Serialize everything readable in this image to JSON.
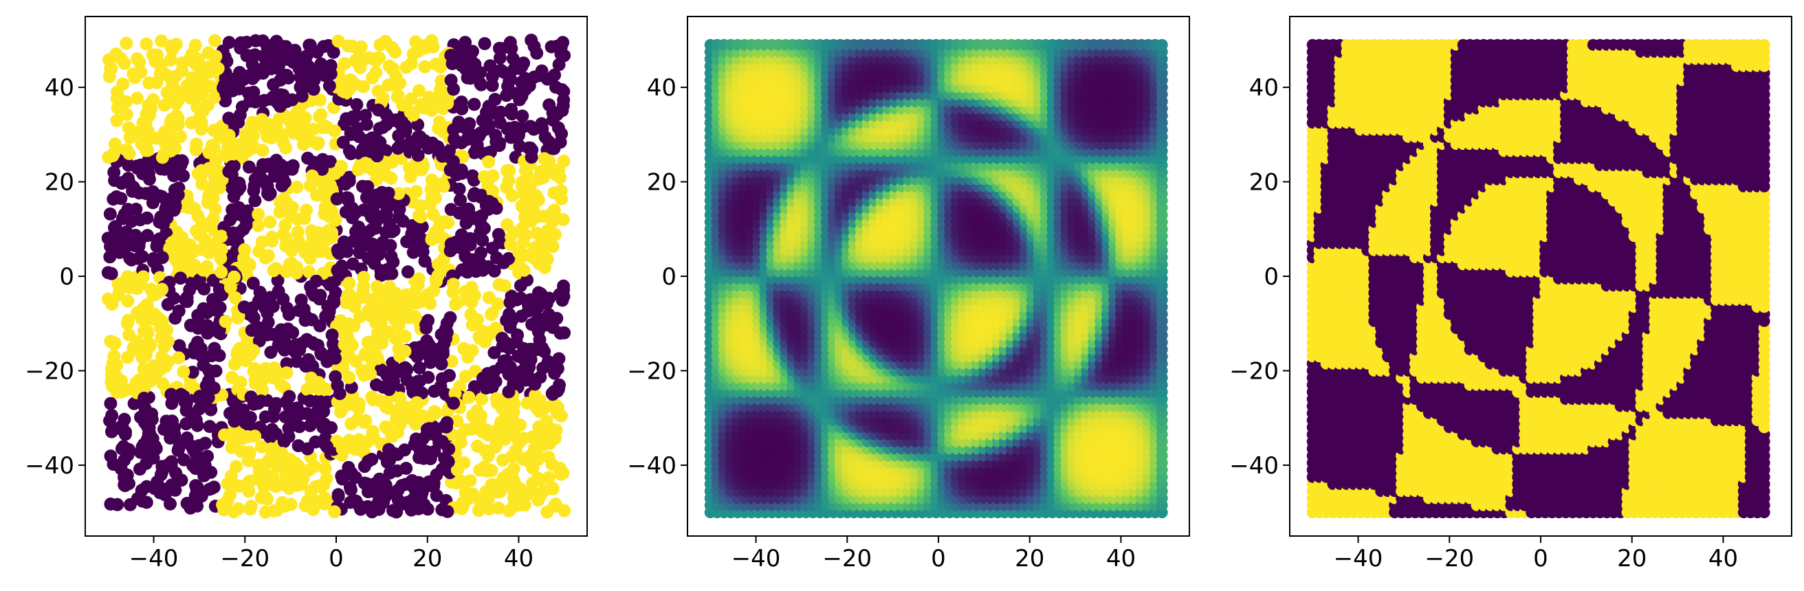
{
  "figure": {
    "background": "#ffffff"
  },
  "chart_data": [
    {
      "type": "scatter",
      "panel": "left",
      "description_of_marks": "random scattered points colored by binary class",
      "xlim": [
        -55,
        55
      ],
      "ylim": [
        -55,
        55
      ],
      "xticks": [
        -40,
        -20,
        0,
        20,
        40
      ],
      "yticks": [
        -40,
        -20,
        0,
        20,
        40
      ],
      "xticklabels": [
        "−40",
        "−20",
        "0",
        "20",
        "40"
      ],
      "yticklabels": [
        "−40",
        "−20",
        "0",
        "20",
        "40"
      ],
      "pattern": {
        "checker_size": 25,
        "circle_radius_outer": 38,
        "circle_radius_inner": 22,
        "rotate_deg": 0
      },
      "colors": {
        "class0": "#440154",
        "class1": "#fde725"
      }
    },
    {
      "type": "scatter",
      "panel": "middle",
      "description_of_marks": "regular grid of points colored by continuous predicted probability (viridis)",
      "xlim": [
        -55,
        55
      ],
      "ylim": [
        -55,
        55
      ],
      "xticks": [
        -40,
        -20,
        0,
        20,
        40
      ],
      "yticks": [
        -40,
        -20,
        0,
        20,
        40
      ],
      "xticklabels": [
        "−40",
        "−20",
        "0",
        "20",
        "40"
      ],
      "yticklabels": [
        "−40",
        "−20",
        "0",
        "20",
        "40"
      ],
      "pattern": {
        "checker_size": 25,
        "circle_radius_outer": 38,
        "circle_radius_inner": 22,
        "smoothness": 2.5
      },
      "colors": {
        "viridis": [
          "#440154",
          "#3b528b",
          "#21918c",
          "#5ec962",
          "#fde725"
        ]
      }
    },
    {
      "type": "scatter",
      "panel": "right",
      "description_of_marks": "regular grid of points colored by thresholded binary prediction",
      "xlim": [
        -55,
        55
      ],
      "ylim": [
        -55,
        55
      ],
      "xticks": [
        -40,
        -20,
        0,
        20,
        40
      ],
      "yticks": [
        -40,
        -20,
        0,
        20,
        40
      ],
      "xticklabels": [
        "−40",
        "−20",
        "0",
        "20",
        "40"
      ],
      "yticklabels": [
        "−40",
        "−20",
        "0",
        "20",
        "40"
      ],
      "pattern": {
        "checker_size": 25,
        "circle_radius_outer": 38,
        "circle_radius_inner": 22,
        "rotate_deg": 8
      },
      "colors": {
        "class0": "#440154",
        "class1": "#fde725"
      }
    }
  ]
}
